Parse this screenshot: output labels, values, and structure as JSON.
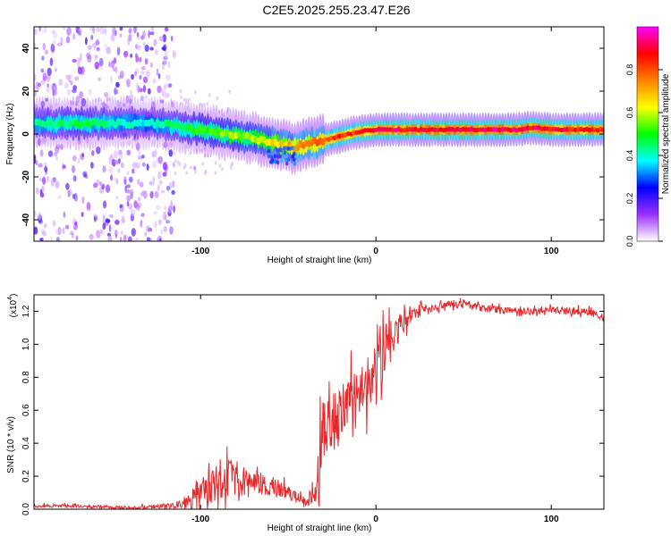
{
  "title": "C2E5.2025.255.23.47.E26",
  "colors": {
    "signal": "#e8272a",
    "axis": "#000000",
    "background": "#ffffff"
  },
  "chart_data": [
    {
      "type": "heatmap",
      "name": "spectrogram",
      "xlabel": "Height of straight line (km)",
      "ylabel": "Frequency (Hz)",
      "xlim": [
        -195,
        130
      ],
      "ylim": [
        -50,
        50
      ],
      "xticks": [
        -100,
        0,
        100
      ],
      "xtick_labels": [
        "-100",
        "0",
        "100"
      ],
      "yticks": [
        -40,
        -20,
        0,
        20,
        40
      ],
      "ytick_labels": [
        "-40",
        "-20",
        "0",
        "20",
        "40"
      ],
      "noise_region_x": [
        -195,
        -115
      ],
      "ridge": {
        "x": [
          -195,
          -170,
          -150,
          -130,
          -115,
          -100,
          -85,
          -70,
          -60,
          -50,
          -45,
          -40,
          -30,
          -20,
          -10,
          0,
          20,
          40,
          60,
          80,
          90,
          100,
          115,
          130
        ],
        "freq": [
          5,
          5,
          5,
          5,
          4,
          2,
          0,
          -2,
          -4,
          -6,
          -6,
          -5,
          -3,
          -1,
          1,
          2,
          2,
          2,
          2,
          2,
          3,
          2,
          2,
          2
        ],
        "amplitude": [
          0.45,
          0.5,
          0.45,
          0.4,
          0.5,
          0.55,
          0.6,
          0.65,
          0.7,
          0.75,
          0.8,
          0.8,
          0.85,
          0.9,
          0.9,
          0.97,
          0.97,
          0.98,
          0.98,
          0.97,
          0.97,
          0.96,
          0.95,
          0.94
        ]
      },
      "colorbar": {
        "label": "Normalized spectral amplitude",
        "range": [
          0,
          1
        ],
        "ticks": [
          0.0,
          0.2,
          0.4,
          0.6,
          0.8
        ],
        "tick_labels": [
          "0.0",
          "0.2",
          "0.4",
          "0.6",
          "0.8"
        ],
        "colors": [
          "#ffffff",
          "#9b30ff",
          "#0000ff",
          "#00ffff",
          "#00ff00",
          "#ffff00",
          "#ff8000",
          "#ff0000",
          "#ff00ff"
        ]
      }
    },
    {
      "type": "line",
      "name": "snr",
      "xlabel": "Height of straight line (km)",
      "ylabel": "SNR (10 * v/v)",
      "y_multiplier_label": "(x10",
      "y_multiplier_exponent": "4",
      "xlim": [
        -195,
        130
      ],
      "ylim": [
        0,
        1.3
      ],
      "xticks": [
        -100,
        0,
        100
      ],
      "xtick_labels": [
        "-100",
        "0",
        "100"
      ],
      "yticks": [
        0,
        0.2,
        0.4,
        0.6,
        0.8,
        1.0,
        1.2
      ],
      "ytick_labels": [
        "0.0",
        "0.2",
        "0.4",
        "0.6",
        "0.8",
        "1.0",
        "1.2"
      ],
      "series": [
        {
          "name": "SNR",
          "x": [
            -195,
            -180,
            -160,
            -140,
            -120,
            -110,
            -105,
            -100,
            -95,
            -90,
            -85,
            -80,
            -75,
            -70,
            -65,
            -60,
            -55,
            -50,
            -45,
            -40,
            -35,
            -33,
            -32,
            -30,
            -28,
            -25,
            -22,
            -20,
            -15,
            -10,
            -5,
            0,
            5,
            10,
            15,
            20,
            30,
            40,
            50,
            60,
            70,
            80,
            90,
            100,
            110,
            120,
            125,
            130
          ],
          "mean": [
            0.02,
            0.02,
            0.015,
            0.01,
            0.02,
            0.03,
            0.06,
            0.1,
            0.13,
            0.15,
            0.18,
            0.2,
            0.17,
            0.18,
            0.15,
            0.14,
            0.12,
            0.1,
            0.07,
            0.05,
            0.09,
            0.2,
            0.38,
            0.48,
            0.55,
            0.52,
            0.55,
            0.58,
            0.62,
            0.66,
            0.72,
            0.8,
            0.95,
            1.05,
            1.12,
            1.18,
            1.22,
            1.24,
            1.24,
            1.22,
            1.21,
            1.21,
            1.2,
            1.21,
            1.2,
            1.2,
            1.18,
            1.17
          ],
          "noise": [
            0.012,
            0.012,
            0.01,
            0.01,
            0.015,
            0.03,
            0.07,
            0.12,
            0.14,
            0.14,
            0.13,
            0.12,
            0.1,
            0.1,
            0.09,
            0.08,
            0.06,
            0.05,
            0.04,
            0.04,
            0.06,
            0.15,
            0.22,
            0.2,
            0.2,
            0.18,
            0.2,
            0.22,
            0.22,
            0.22,
            0.22,
            0.22,
            0.18,
            0.12,
            0.08,
            0.05,
            0.03,
            0.025,
            0.025,
            0.025,
            0.025,
            0.025,
            0.025,
            0.025,
            0.025,
            0.025,
            0.025,
            0.025
          ]
        }
      ]
    }
  ]
}
